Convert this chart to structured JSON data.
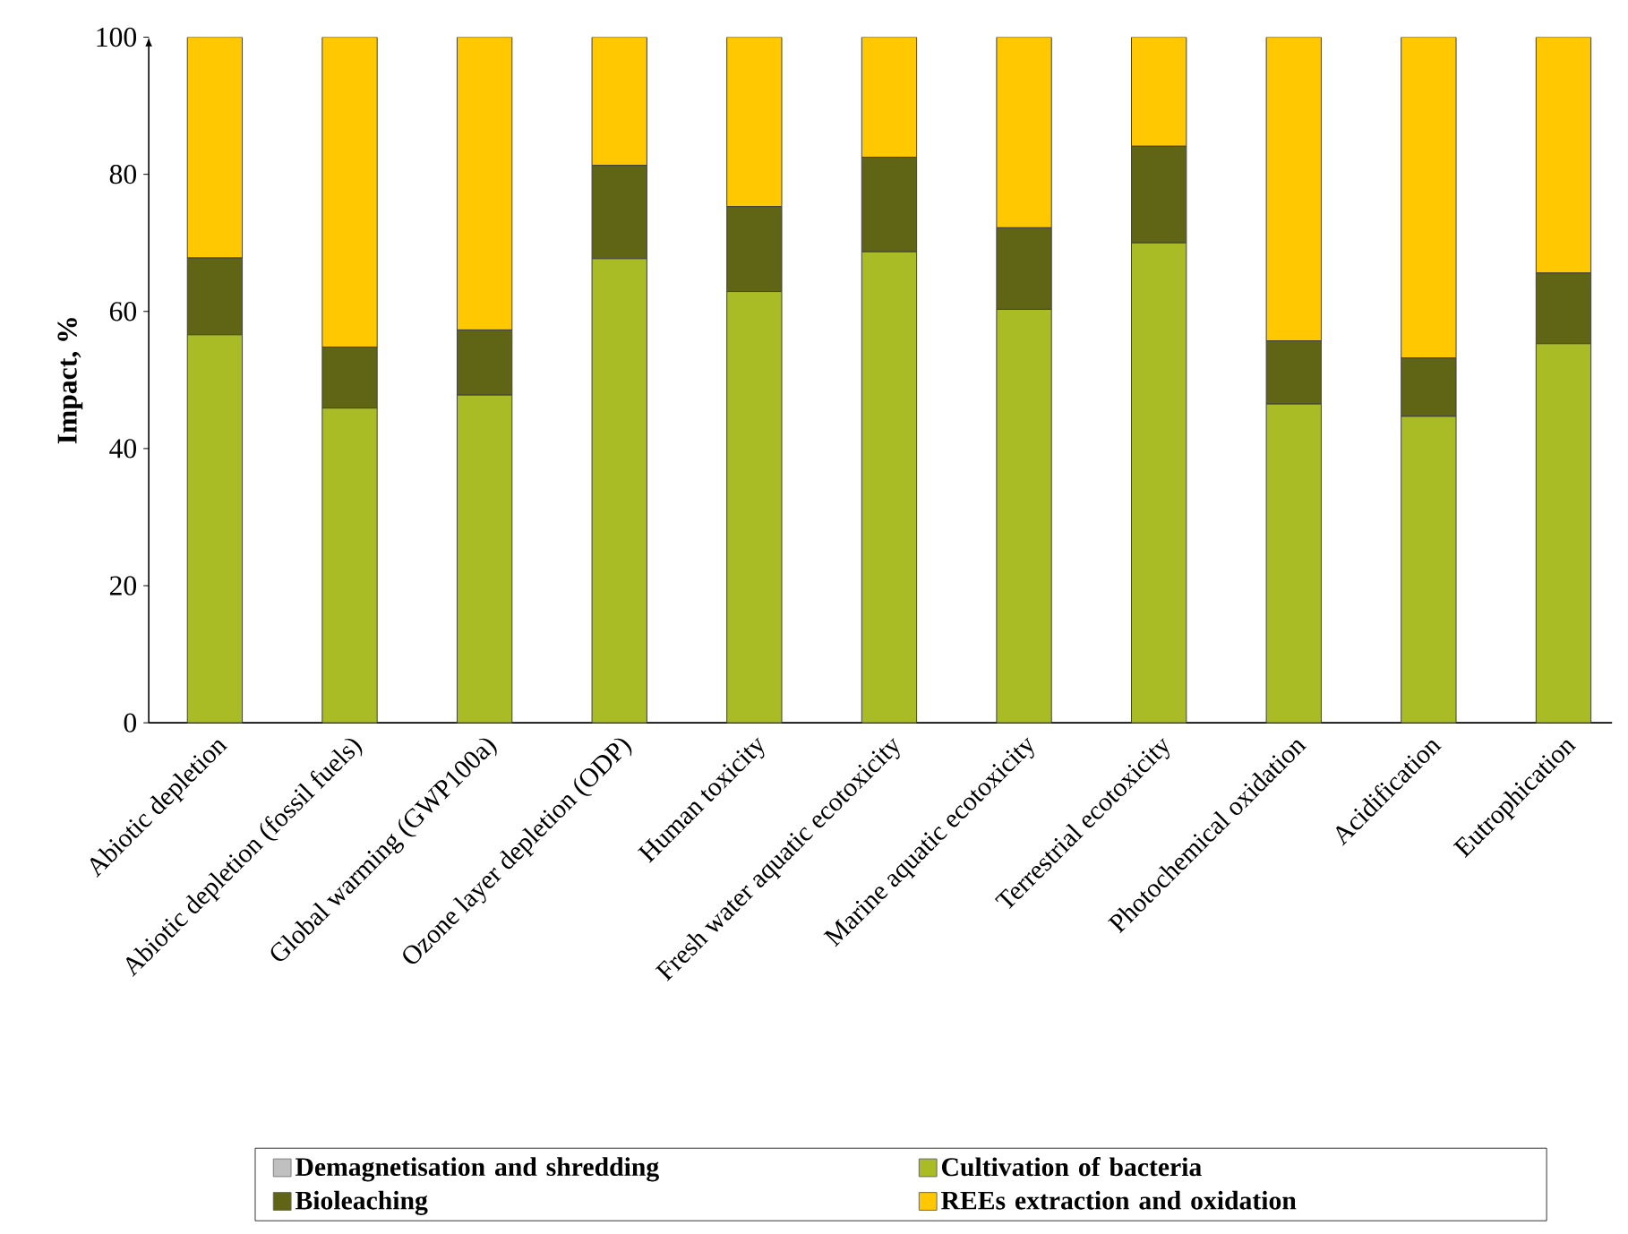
{
  "chart_data": {
    "type": "bar",
    "stacked": true,
    "ylabel": "Impact, %",
    "categories": [
      "Abiotic depletion",
      "Abiotic depletion (fossil fuels)",
      "Global warming (GWP100a)",
      "Ozone layer depletion (ODP)",
      "Human toxicity",
      "Fresh water aquatic ecotoxicity",
      "Marine aquatic ecotoxicity",
      "Terrestrial ecotoxicity",
      "Photochemical oxidation",
      "Acidification",
      "Eutrophication"
    ],
    "series": [
      {
        "name": "Demagnetisation and shredding",
        "color": "#c0c0c0",
        "values": [
          0,
          0,
          0,
          0,
          0,
          0,
          0,
          0,
          0,
          0,
          0
        ]
      },
      {
        "name": "Cultivation of bacteria",
        "color": "#a9bb25",
        "values": [
          56.6,
          45.9,
          47.8,
          67.7,
          62.9,
          68.7,
          60.3,
          70.0,
          46.5,
          44.7,
          55.3
        ]
      },
      {
        "name": "Bioleaching",
        "color": "#5f6514",
        "values": [
          11.2,
          8.9,
          9.5,
          13.6,
          12.4,
          13.8,
          11.9,
          14.1,
          9.2,
          8.5,
          10.3
        ]
      },
      {
        "name": "REEs extraction and oxidation",
        "color": "#ffc800",
        "values": [
          32.2,
          45.2,
          42.7,
          18.7,
          24.7,
          17.5,
          27.8,
          15.9,
          44.3,
          46.8,
          34.4
        ]
      }
    ],
    "ylim": [
      0,
      100
    ],
    "yticks": [
      0,
      20,
      40,
      60,
      80,
      100
    ],
    "grid": false,
    "legend": "bottom"
  }
}
